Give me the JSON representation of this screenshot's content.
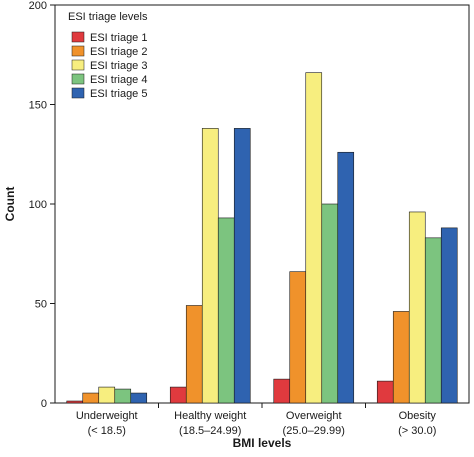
{
  "chart_data": {
    "type": "bar",
    "categories": [
      [
        "Underweight",
        "(< 18.5)"
      ],
      [
        "Healthy weight",
        "(18.5–24.99)"
      ],
      [
        "Overweight",
        "(25.0–29.99)"
      ],
      [
        "Obesity",
        "(> 30.0)"
      ]
    ],
    "series": [
      {
        "name": "ESI triage 1",
        "color": "#e03a3e",
        "values": [
          1,
          8,
          12,
          11
        ]
      },
      {
        "name": "ESI triage 2",
        "color": "#f0922b",
        "values": [
          5,
          49,
          66,
          46
        ]
      },
      {
        "name": "ESI triage 3",
        "color": "#f7ee7f",
        "values": [
          8,
          138,
          166,
          96
        ]
      },
      {
        "name": "ESI triage 4",
        "color": "#7cc47f",
        "values": [
          7,
          93,
          100,
          83
        ]
      },
      {
        "name": "ESI triage 5",
        "color": "#2f63b0",
        "values": [
          5,
          138,
          126,
          88
        ]
      }
    ],
    "xlabel": "BMI levels",
    "ylabel": "Count",
    "ylim": [
      0,
      200
    ],
    "yticks": [
      "0",
      "50",
      "100",
      "150",
      "200"
    ],
    "legend": {
      "title": "ESI triage levels",
      "position": "top-left"
    },
    "grid": false
  }
}
